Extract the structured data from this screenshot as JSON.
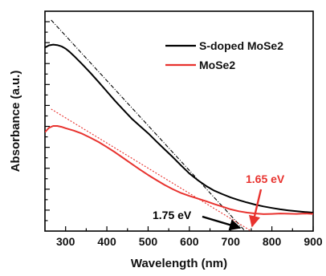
{
  "chart_data": {
    "type": "line",
    "xlabel": "Wavelength (nm)",
    "ylabel": "Absorbance (a.u.)",
    "xlim": [
      250,
      900
    ],
    "ylim": [
      0,
      1
    ],
    "x_ticks": [
      "300",
      "400",
      "500",
      "600",
      "700",
      "800",
      "900"
    ],
    "y_tick_labels_shown": false,
    "legend_position": "top-right",
    "series": [
      {
        "name": "S-doped MoSe2",
        "color": "#000000",
        "x": [
          250,
          260,
          270,
          280,
          290,
          300,
          310,
          320,
          340,
          360,
          380,
          400,
          420,
          440,
          460,
          480,
          500,
          520,
          540,
          560,
          580,
          600,
          620,
          640,
          660,
          680,
          700,
          720,
          740,
          760,
          780,
          800,
          820,
          840,
          860,
          880,
          900
        ],
        "y": [
          0.835,
          0.845,
          0.848,
          0.846,
          0.84,
          0.83,
          0.815,
          0.797,
          0.76,
          0.72,
          0.678,
          0.635,
          0.592,
          0.552,
          0.512,
          0.478,
          0.445,
          0.408,
          0.372,
          0.336,
          0.298,
          0.262,
          0.232,
          0.206,
          0.184,
          0.168,
          0.153,
          0.141,
          0.13,
          0.12,
          0.112,
          0.105,
          0.099,
          0.094,
          0.09,
          0.087,
          0.084
        ]
      },
      {
        "name": "MoSe2",
        "color": "#e8322e",
        "x": [
          250,
          260,
          270,
          280,
          290,
          300,
          320,
          340,
          360,
          380,
          400,
          420,
          440,
          460,
          480,
          500,
          520,
          540,
          560,
          580,
          600,
          620,
          640,
          660,
          680,
          700,
          720,
          740,
          760,
          780,
          800,
          820,
          840,
          860,
          880,
          900
        ],
        "y": [
          0.45,
          0.47,
          0.478,
          0.478,
          0.474,
          0.468,
          0.457,
          0.443,
          0.425,
          0.405,
          0.382,
          0.358,
          0.332,
          0.306,
          0.28,
          0.255,
          0.232,
          0.21,
          0.19,
          0.173,
          0.16,
          0.148,
          0.136,
          0.123,
          0.111,
          0.099,
          0.09,
          0.084,
          0.08,
          0.077,
          0.078,
          0.08,
          0.079,
          0.078,
          0.08,
          0.078
        ]
      }
    ],
    "fits": [
      {
        "series": "S-doped MoSe2",
        "style": "dash-dot",
        "color": "#000000",
        "x": [
          265,
          735
        ],
        "y": [
          0.96,
          0.0
        ]
      },
      {
        "series": "MoSe2",
        "style": "dotted",
        "color": "#e8322e",
        "x": [
          265,
          750
        ],
        "y": [
          0.555,
          0.0
        ]
      }
    ],
    "annotations": [
      {
        "text": "1.75 eV",
        "color": "#000000",
        "points_to_x": 710
      },
      {
        "text": "1.65 eV",
        "color": "#e8322e",
        "points_to_x": 752
      }
    ]
  }
}
